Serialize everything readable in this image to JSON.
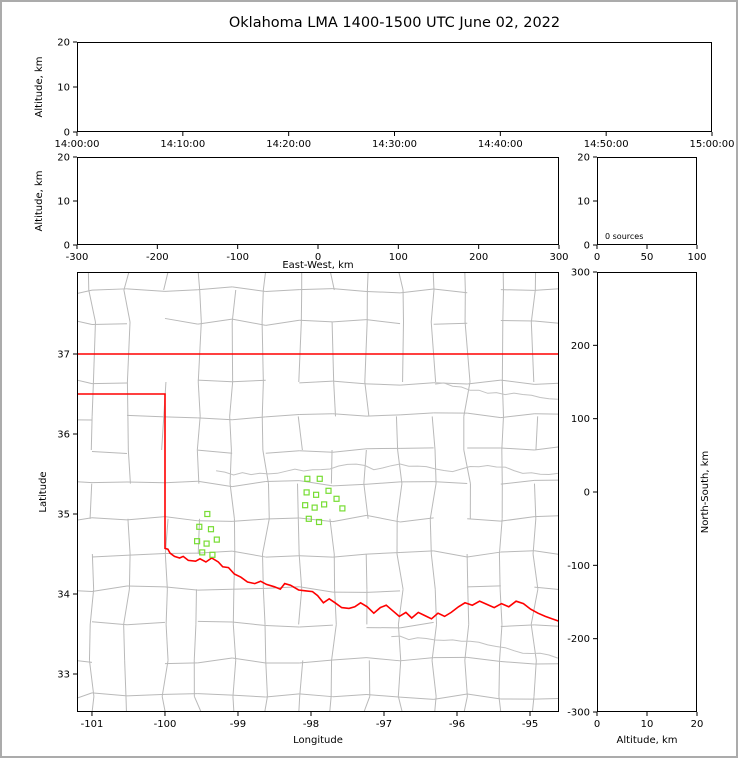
{
  "title": "Oklahoma LMA 1400-1500 UTC June 02, 2022",
  "colors": {
    "state_boundary": "#ff0000",
    "county_line": "#b9b9b9",
    "river_line": "#c2c2c2",
    "station_marker": "#77dd33",
    "panel_frame": "#000000",
    "background": "#ffffff",
    "outer_border": "#ababab"
  },
  "chart_data": [
    {
      "id": "time_height",
      "type": "scatter",
      "description": "Altitude vs time panel (no sources plotted)",
      "xlabel": "",
      "ylabel": "Altitude, km",
      "xtick_labels": [
        "14:00:00",
        "14:10:00",
        "14:20:00",
        "14:30:00",
        "14:40:00",
        "14:50:00",
        "15:00:00"
      ],
      "yticks": [
        0,
        10,
        20
      ],
      "ylim": [
        0,
        20
      ],
      "points": []
    },
    {
      "id": "ew_height",
      "type": "scatter",
      "description": "Altitude vs East-West distance panel (no sources plotted)",
      "xlabel": "East-West, km",
      "ylabel": "Altitude, km",
      "xticks": [
        -300,
        -200,
        -100,
        0,
        100,
        200,
        300
      ],
      "yticks": [
        0,
        10,
        20
      ],
      "xlim": [
        -300,
        300
      ],
      "ylim": [
        0,
        20
      ],
      "points": []
    },
    {
      "id": "altitude_histogram",
      "type": "line",
      "description": "Source-count vs altitude panel",
      "annotation": "0 sources",
      "xticks": [
        0,
        50,
        100
      ],
      "yticks": [
        0,
        10,
        20
      ],
      "xlim": [
        0,
        100
      ],
      "ylim": [
        0,
        20
      ],
      "points": []
    },
    {
      "id": "plan_view",
      "type": "scatter",
      "description": "Plan view map of Oklahoma with LMA station markers (green squares), state boundary in red, county lines in gray",
      "xlabel": "Longitude",
      "ylabel": "Latitude",
      "xticks": [
        -101,
        -100,
        -99,
        -98,
        -97,
        -96,
        -95
      ],
      "yticks": [
        33,
        34,
        35,
        36,
        37
      ],
      "xlim": [
        -101.205,
        -94.603
      ],
      "ylim": [
        32.525,
        38.025
      ],
      "stations": [
        [
          -99.42,
          35.0
        ],
        [
          -99.53,
          34.84
        ],
        [
          -99.37,
          34.81
        ],
        [
          -99.56,
          34.66
        ],
        [
          -99.43,
          34.63
        ],
        [
          -99.29,
          34.68
        ],
        [
          -99.49,
          34.52
        ],
        [
          -99.35,
          34.49
        ],
        [
          -98.05,
          35.44
        ],
        [
          -97.88,
          35.44
        ],
        [
          -98.06,
          35.27
        ],
        [
          -97.93,
          35.24
        ],
        [
          -97.76,
          35.29
        ],
        [
          -98.08,
          35.11
        ],
        [
          -97.95,
          35.08
        ],
        [
          -97.82,
          35.12
        ],
        [
          -97.65,
          35.19
        ],
        [
          -97.57,
          35.07
        ],
        [
          -98.03,
          34.94
        ],
        [
          -97.89,
          34.9
        ]
      ],
      "state_boundary": {
        "north_border_lat": 37,
        "panhandle_south_lat": 36.5,
        "west_border_lon": -100,
        "red_river": [
          [
            -100.0,
            34.57
          ],
          [
            -99.96,
            34.56
          ],
          [
            -99.93,
            34.51
          ],
          [
            -99.87,
            34.47
          ],
          [
            -99.8,
            34.45
          ],
          [
            -99.75,
            34.47
          ],
          [
            -99.68,
            34.42
          ],
          [
            -99.58,
            34.41
          ],
          [
            -99.52,
            34.44
          ],
          [
            -99.44,
            34.4
          ],
          [
            -99.36,
            34.45
          ],
          [
            -99.27,
            34.4
          ],
          [
            -99.21,
            34.34
          ],
          [
            -99.13,
            34.33
          ],
          [
            -99.05,
            34.25
          ],
          [
            -98.96,
            34.21
          ],
          [
            -98.87,
            34.15
          ],
          [
            -98.77,
            34.13
          ],
          [
            -98.69,
            34.16
          ],
          [
            -98.61,
            34.12
          ],
          [
            -98.5,
            34.09
          ],
          [
            -98.42,
            34.06
          ],
          [
            -98.36,
            34.13
          ],
          [
            -98.28,
            34.11
          ],
          [
            -98.17,
            34.05
          ],
          [
            -98.08,
            34.04
          ],
          [
            -97.98,
            34.03
          ],
          [
            -97.91,
            33.98
          ],
          [
            -97.83,
            33.89
          ],
          [
            -97.75,
            33.94
          ],
          [
            -97.67,
            33.89
          ],
          [
            -97.58,
            33.83
          ],
          [
            -97.48,
            33.82
          ],
          [
            -97.4,
            33.84
          ],
          [
            -97.32,
            33.89
          ],
          [
            -97.23,
            33.84
          ],
          [
            -97.14,
            33.76
          ],
          [
            -97.05,
            33.83
          ],
          [
            -96.97,
            33.86
          ],
          [
            -96.88,
            33.79
          ],
          [
            -96.79,
            33.72
          ],
          [
            -96.7,
            33.77
          ],
          [
            -96.62,
            33.7
          ],
          [
            -96.53,
            33.77
          ],
          [
            -96.44,
            33.73
          ],
          [
            -96.35,
            33.69
          ],
          [
            -96.26,
            33.76
          ],
          [
            -96.17,
            33.72
          ],
          [
            -96.08,
            33.77
          ],
          [
            -95.98,
            33.84
          ],
          [
            -95.89,
            33.89
          ],
          [
            -95.79,
            33.86
          ],
          [
            -95.69,
            33.91
          ],
          [
            -95.59,
            33.87
          ],
          [
            -95.49,
            33.83
          ],
          [
            -95.39,
            33.88
          ],
          [
            -95.29,
            33.84
          ],
          [
            -95.19,
            33.91
          ],
          [
            -95.09,
            33.88
          ],
          [
            -94.99,
            33.81
          ],
          [
            -94.89,
            33.76
          ],
          [
            -94.79,
            33.72
          ],
          [
            -94.7,
            33.69
          ],
          [
            -94.603,
            33.66
          ]
        ]
      }
    },
    {
      "id": "ns_height",
      "type": "scatter",
      "description": "North-South distance vs altitude panel (no sources plotted)",
      "xlabel": "Altitude, km",
      "ylabel_right": "North-South, km",
      "xticks": [
        0,
        10,
        20
      ],
      "yticks": [
        300,
        200,
        100,
        0,
        -100,
        -200,
        -300
      ],
      "xlim": [
        0,
        20
      ],
      "ylim": [
        -300,
        300
      ],
      "points": []
    }
  ]
}
